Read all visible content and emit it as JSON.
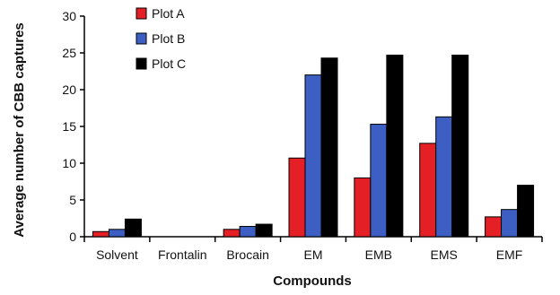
{
  "chart_data": {
    "type": "bar",
    "title": "",
    "xlabel": "Compounds",
    "ylabel": "Average number of CBB captures",
    "ylim": [
      0,
      30
    ],
    "yticks": [
      0,
      5,
      10,
      15,
      20,
      25,
      30
    ],
    "categories": [
      "Solvent",
      "Frontalin",
      "Brocain",
      "EM",
      "EMB",
      "EMS",
      "EMF"
    ],
    "series": [
      {
        "name": "Plot A",
        "color": "#e41f26",
        "values": [
          0.7,
          0,
          1.0,
          10.7,
          8.0,
          12.7,
          2.7
        ]
      },
      {
        "name": "Plot B",
        "color": "#3d5fc4",
        "values": [
          1.0,
          0,
          1.4,
          22.0,
          15.3,
          16.3,
          3.7
        ]
      },
      {
        "name": "Plot C",
        "color": "#000000",
        "values": [
          2.4,
          0,
          1.7,
          24.3,
          24.7,
          24.7,
          7.0
        ]
      }
    ],
    "legend_position": "top-left",
    "grid": false
  }
}
